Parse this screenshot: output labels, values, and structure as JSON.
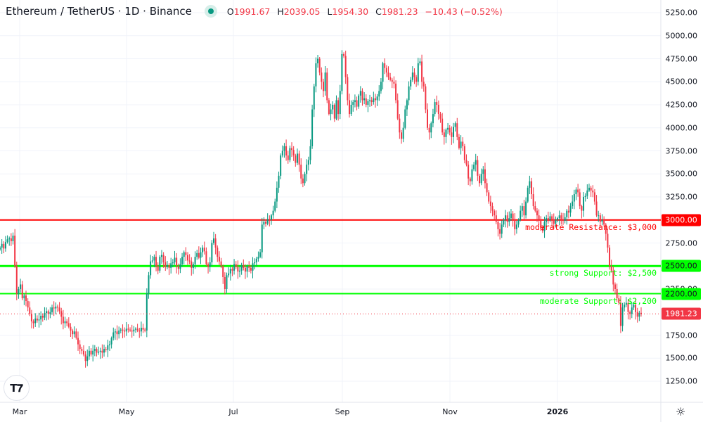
{
  "header": {
    "title": "Ethereum / TetherUS · 1D · Binance",
    "open_label": "O",
    "open": "1991.67",
    "high_label": "H",
    "high": "2039.05",
    "low_label": "L",
    "low": "1954.30",
    "close_label": "C",
    "close": "1981.23",
    "change": "−10.43 (−0.52%)"
  },
  "colors": {
    "up": "#089981",
    "down": "#f23645",
    "resistance": "#ff0000",
    "support": "#00ff00"
  },
  "y_axis": [
    "5250.00",
    "5000.00",
    "4750.00",
    "4500.00",
    "4250.00",
    "4000.00",
    "3750.00",
    "3500.00",
    "3250.00",
    "2750.00",
    "2250.00",
    "1750.00",
    "1500.00",
    "1250.00"
  ],
  "x_axis": [
    "Mar",
    "May",
    "Jul",
    "Sep",
    "Nov",
    "2026"
  ],
  "levels": [
    {
      "price": 3000,
      "tag": "3000.00",
      "label": "moderate Resistance: $3,000",
      "type": "resistance"
    },
    {
      "price": 2500,
      "tag": "2500.00",
      "label": "strong Support: $2,500",
      "type": "support"
    },
    {
      "price": 2200,
      "tag": "2200.00",
      "label": "moderate Support: $2,200",
      "type": "support"
    }
  ],
  "last_price_tag": "1981.23",
  "logo": "TV",
  "chart_data": {
    "type": "candlestick",
    "interval": "1D",
    "ylim": [
      1250,
      5250
    ],
    "grid": true,
    "close": [
      2700,
      2740,
      2690,
      2760,
      2790,
      2800,
      2770,
      2830,
      2500,
      2200,
      2250,
      2300,
      2150,
      2180,
      2120,
      2050,
      1980,
      1900,
      1880,
      1930,
      1910,
      1920,
      1960,
      1940,
      1990,
      2010,
      1980,
      2000,
      2050,
      2040,
      2060,
      2050,
      2010,
      1950,
      1880,
      1900,
      1880,
      1840,
      1800,
      1760,
      1790,
      1720,
      1650,
      1600,
      1580,
      1540,
      1470,
      1520,
      1580,
      1540,
      1580,
      1600,
      1560,
      1570,
      1580,
      1560,
      1600,
      1590,
      1640,
      1650,
      1720,
      1780,
      1790,
      1760,
      1800,
      1810,
      1800,
      1790,
      1820,
      1810,
      1800,
      1790,
      1810,
      1820,
      1800,
      1790,
      1830,
      1810,
      1800,
      2200,
      2400,
      2550,
      2560,
      2600,
      2500,
      2450,
      2600,
      2620,
      2540,
      2490,
      2510,
      2480,
      2530,
      2540,
      2590,
      2500,
      2470,
      2520,
      2600,
      2650,
      2620,
      2560,
      2550,
      2480,
      2520,
      2600,
      2640,
      2590,
      2650,
      2700,
      2660,
      2520,
      2490,
      2540,
      2750,
      2800,
      2700,
      2600,
      2550,
      2500,
      2380,
      2250,
      2400,
      2420,
      2470,
      2450,
      2520,
      2490,
      2440,
      2450,
      2510,
      2480,
      2440,
      2500,
      2480,
      2450,
      2530,
      2540,
      2580,
      2600,
      2650,
      2950,
      2980,
      2960,
      3010,
      3000,
      3050,
      3100,
      3200,
      3350,
      3480,
      3700,
      3750,
      3800,
      3700,
      3650,
      3780,
      3760,
      3700,
      3620,
      3720,
      3600,
      3450,
      3400,
      3500,
      3600,
      3650,
      3800,
      4200,
      4450,
      4700,
      4750,
      4600,
      4500,
      4400,
      4600,
      4300,
      4150,
      4200,
      4250,
      4100,
      4300,
      4150,
      4400,
      4800,
      4780,
      4550,
      4300,
      4150,
      4250,
      4280,
      4300,
      4230,
      4350,
      4400,
      4300,
      4320,
      4250,
      4290,
      4300,
      4280,
      4320,
      4300,
      4340,
      4400,
      4500,
      4700,
      4650,
      4600,
      4550,
      4520,
      4500,
      4480,
      4300,
      4100,
      3950,
      3880,
      4000,
      4200,
      4300,
      4450,
      4520,
      4600,
      4550,
      4500,
      4700,
      4720,
      4500,
      4450,
      4200,
      4000,
      3950,
      4050,
      4150,
      4280,
      4250,
      4150,
      4100,
      3950,
      3900,
      3980,
      4000,
      3950,
      3900,
      4010,
      4050,
      3900,
      3780,
      3850,
      3800,
      3650,
      3600,
      3450,
      3420,
      3550,
      3600,
      3650,
      3480,
      3400,
      3500,
      3550,
      3400,
      3300,
      3200,
      3150,
      3100,
      3050,
      2980,
      2900,
      2850,
      2950,
      3000,
      3050,
      2980,
      3020,
      3070,
      3010,
      2900,
      2950,
      3000,
      3100,
      3150,
      3050,
      3200,
      3350,
      3420,
      3280,
      3150,
      3100,
      3050,
      3000,
      2920,
      2880,
      2980,
      3020,
      3000,
      3040,
      3010,
      2960,
      3000,
      3020,
      3050,
      3010,
      2990,
      3030,
      3100,
      3080,
      3150,
      3200,
      3280,
      3330,
      3300,
      3150,
      3100,
      3250,
      3260,
      3320,
      3350,
      3320,
      3300,
      3200,
      3050,
      3050,
      2980,
      3000,
      2950,
      2850,
      2700,
      2500,
      2450,
      2300,
      2250,
      2150,
      2100,
      1850,
      2050,
      2080,
      2100,
      2000,
      1980,
      2050,
      2080,
      2000,
      1950,
      1991.67,
      1981.23
    ]
  }
}
